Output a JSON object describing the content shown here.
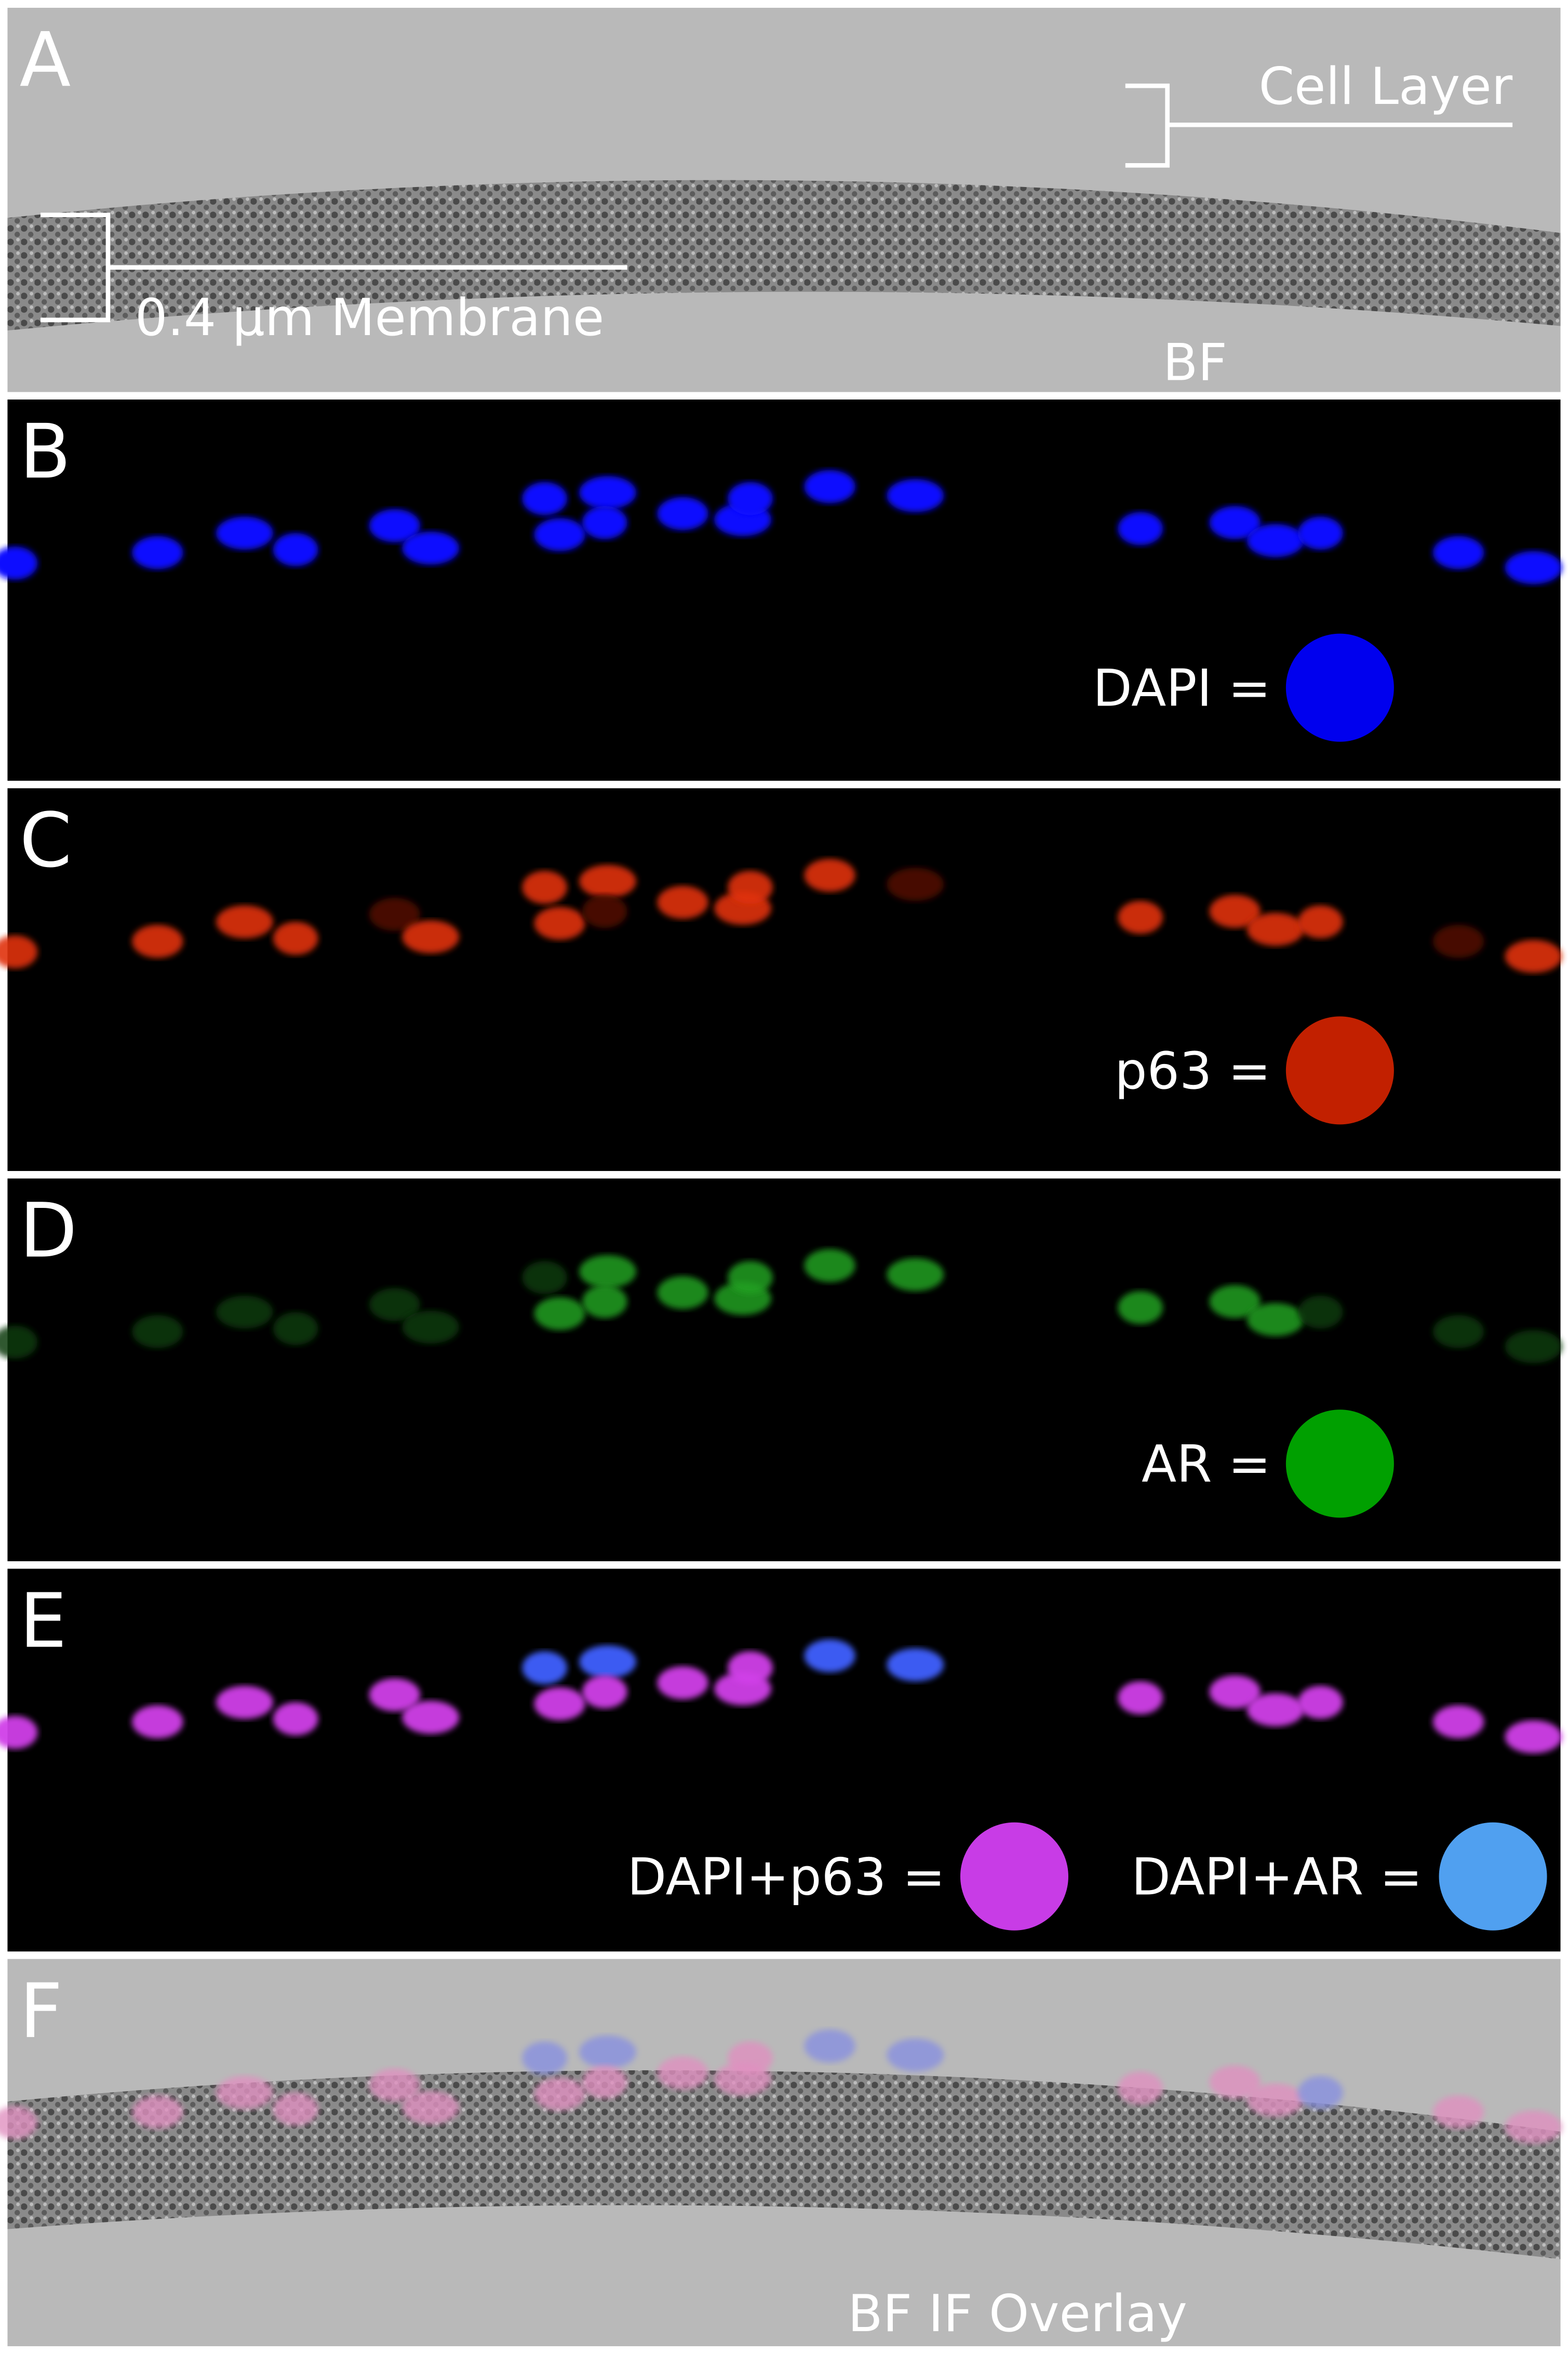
{
  "panels": [
    {
      "letter": "A",
      "labels": [
        "Cell Layer",
        "0.4 μm Membrane",
        "BF"
      ]
    },
    {
      "letter": "B",
      "labels": [
        "DAPI ="
      ]
    },
    {
      "letter": "C",
      "labels": [
        "p63 ="
      ]
    },
    {
      "letter": "D",
      "labels": [
        "AR ="
      ]
    },
    {
      "letter": "E",
      "labels": [
        "DAPI+p63 =",
        "DAPI+AR ="
      ]
    },
    {
      "letter": "F",
      "labels": [
        "BF IF Overlay"
      ]
    }
  ]
}
